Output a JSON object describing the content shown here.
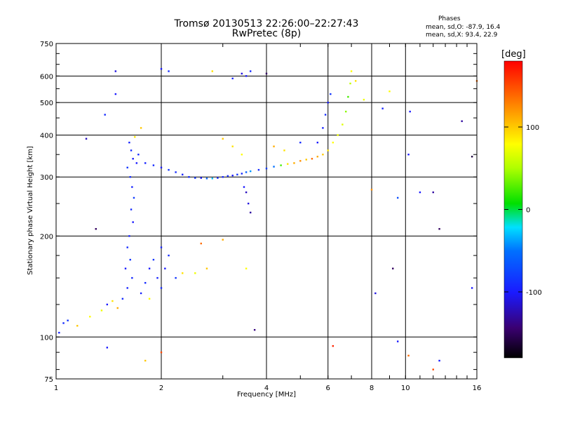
{
  "header": {
    "title": "Tromsø 20130513 22:26:00–22:27:43",
    "subtitle": "RwPretec (8p)",
    "stats_heading": "Phases",
    "stats_o": "mean, sd,O: -87.9, 16.4",
    "stats_x": "mean, sd,X:  93.4, 22.9"
  },
  "colorbar": {
    "unit_label": "[deg]",
    "range": [
      -180,
      180
    ],
    "ticks": [
      {
        "value": 100,
        "label": "100"
      },
      {
        "value": 0,
        "label": "0"
      },
      {
        "value": -100,
        "label": "-100"
      }
    ]
  },
  "chart_data": {
    "type": "scatter",
    "xlabel": "Frequency [MHz]",
    "ylabel": "Stationary phase Virtual Height [km]",
    "xscale": "log",
    "yscale": "log",
    "xlim": [
      1,
      16
    ],
    "ylim": [
      75,
      750
    ],
    "grid": true,
    "x_ticks": [
      {
        "value": 1,
        "label": "1"
      },
      {
        "value": 2,
        "label": "2"
      },
      {
        "value": 4,
        "label": "4"
      },
      {
        "value": 6,
        "label": "6"
      },
      {
        "value": 8,
        "label": "8"
      },
      {
        "value": 10,
        "label": "10"
      },
      {
        "value": 16,
        "label": "16"
      }
    ],
    "y_ticks": [
      {
        "value": 750,
        "label": "750"
      },
      {
        "value": 600,
        "label": "600"
      },
      {
        "value": 500,
        "label": "500"
      },
      {
        "value": 400,
        "label": "400"
      },
      {
        "value": 300,
        "label": "300"
      },
      {
        "value": 200,
        "label": "200"
      },
      {
        "value": 100,
        "label": "100"
      },
      {
        "value": 75,
        "label": "75"
      }
    ],
    "points": [
      {
        "x": 1.02,
        "y": 103,
        "phase": -95
      },
      {
        "x": 1.05,
        "y": 110,
        "phase": -90
      },
      {
        "x": 1.08,
        "y": 112,
        "phase": -85
      },
      {
        "x": 1.15,
        "y": 108,
        "phase": 120
      },
      {
        "x": 1.25,
        "y": 115,
        "phase": 100
      },
      {
        "x": 1.35,
        "y": 120,
        "phase": 90
      },
      {
        "x": 1.4,
        "y": 125,
        "phase": -100
      },
      {
        "x": 1.45,
        "y": 128,
        "phase": 110
      },
      {
        "x": 1.5,
        "y": 122,
        "phase": 130
      },
      {
        "x": 1.3,
        "y": 210,
        "phase": -150
      },
      {
        "x": 1.22,
        "y": 390,
        "phase": -120
      },
      {
        "x": 1.38,
        "y": 460,
        "phase": -90
      },
      {
        "x": 1.48,
        "y": 620,
        "phase": -110
      },
      {
        "x": 1.48,
        "y": 530,
        "phase": -100
      },
      {
        "x": 1.62,
        "y": 380,
        "phase": -95
      },
      {
        "x": 1.64,
        "y": 360,
        "phase": -90
      },
      {
        "x": 1.66,
        "y": 340,
        "phase": -100
      },
      {
        "x": 1.6,
        "y": 320,
        "phase": -85
      },
      {
        "x": 1.63,
        "y": 300,
        "phase": -90
      },
      {
        "x": 1.65,
        "y": 280,
        "phase": -95
      },
      {
        "x": 1.67,
        "y": 260,
        "phase": -80
      },
      {
        "x": 1.64,
        "y": 240,
        "phase": -90
      },
      {
        "x": 1.66,
        "y": 220,
        "phase": -100
      },
      {
        "x": 1.62,
        "y": 200,
        "phase": -95
      },
      {
        "x": 1.6,
        "y": 185,
        "phase": -90
      },
      {
        "x": 1.63,
        "y": 170,
        "phase": -85
      },
      {
        "x": 1.58,
        "y": 160,
        "phase": -100
      },
      {
        "x": 1.65,
        "y": 150,
        "phase": -90
      },
      {
        "x": 1.6,
        "y": 140,
        "phase": -95
      },
      {
        "x": 1.55,
        "y": 130,
        "phase": -90
      },
      {
        "x": 1.7,
        "y": 330,
        "phase": -100
      },
      {
        "x": 1.72,
        "y": 350,
        "phase": -90
      },
      {
        "x": 1.68,
        "y": 395,
        "phase": 110
      },
      {
        "x": 1.75,
        "y": 420,
        "phase": 120
      },
      {
        "x": 1.75,
        "y": 135,
        "phase": -95
      },
      {
        "x": 1.8,
        "y": 145,
        "phase": -90
      },
      {
        "x": 1.85,
        "y": 160,
        "phase": -100
      },
      {
        "x": 1.9,
        "y": 170,
        "phase": -85
      },
      {
        "x": 1.95,
        "y": 150,
        "phase": -95
      },
      {
        "x": 2.0,
        "y": 140,
        "phase": -90
      },
      {
        "x": 2.05,
        "y": 160,
        "phase": -100
      },
      {
        "x": 2.1,
        "y": 175,
        "phase": -90
      },
      {
        "x": 2.0,
        "y": 185,
        "phase": -95
      },
      {
        "x": 1.85,
        "y": 130,
        "phase": 100
      },
      {
        "x": 2.2,
        "y": 150,
        "phase": -85
      },
      {
        "x": 2.3,
        "y": 155,
        "phase": 110
      },
      {
        "x": 2.5,
        "y": 155,
        "phase": 90
      },
      {
        "x": 2.7,
        "y": 160,
        "phase": 120
      },
      {
        "x": 1.8,
        "y": 330,
        "phase": -95
      },
      {
        "x": 1.9,
        "y": 325,
        "phase": -90
      },
      {
        "x": 2.0,
        "y": 320,
        "phase": -100
      },
      {
        "x": 2.1,
        "y": 315,
        "phase": -85
      },
      {
        "x": 2.2,
        "y": 310,
        "phase": -90
      },
      {
        "x": 2.3,
        "y": 305,
        "phase": -95
      },
      {
        "x": 2.4,
        "y": 300,
        "phase": -90
      },
      {
        "x": 2.5,
        "y": 298,
        "phase": -85
      },
      {
        "x": 2.6,
        "y": 298,
        "phase": -100
      },
      {
        "x": 2.7,
        "y": 297,
        "phase": -60
      },
      {
        "x": 2.8,
        "y": 297,
        "phase": -30
      },
      {
        "x": 2.9,
        "y": 298,
        "phase": -90
      },
      {
        "x": 3.0,
        "y": 300,
        "phase": -95
      },
      {
        "x": 3.1,
        "y": 302,
        "phase": -90
      },
      {
        "x": 3.2,
        "y": 303,
        "phase": -100
      },
      {
        "x": 3.3,
        "y": 305,
        "phase": -85
      },
      {
        "x": 3.4,
        "y": 307,
        "phase": -90
      },
      {
        "x": 3.5,
        "y": 310,
        "phase": -60
      },
      {
        "x": 3.6,
        "y": 312,
        "phase": -40
      },
      {
        "x": 3.8,
        "y": 315,
        "phase": -90
      },
      {
        "x": 4.0,
        "y": 318,
        "phase": -80
      },
      {
        "x": 4.2,
        "y": 322,
        "phase": -50
      },
      {
        "x": 4.4,
        "y": 325,
        "phase": 20
      },
      {
        "x": 4.6,
        "y": 328,
        "phase": 110
      },
      {
        "x": 4.8,
        "y": 330,
        "phase": 130
      },
      {
        "x": 5.0,
        "y": 335,
        "phase": 140
      },
      {
        "x": 5.2,
        "y": 338,
        "phase": 120
      },
      {
        "x": 5.4,
        "y": 340,
        "phase": 150
      },
      {
        "x": 5.6,
        "y": 345,
        "phase": 130
      },
      {
        "x": 5.8,
        "y": 350,
        "phase": 120
      },
      {
        "x": 6.0,
        "y": 360,
        "phase": 110
      },
      {
        "x": 6.2,
        "y": 380,
        "phase": 100
      },
      {
        "x": 6.4,
        "y": 400,
        "phase": 90
      },
      {
        "x": 6.6,
        "y": 430,
        "phase": 80
      },
      {
        "x": 6.75,
        "y": 470,
        "phase": 40
      },
      {
        "x": 6.85,
        "y": 520,
        "phase": 20
      },
      {
        "x": 6.95,
        "y": 570,
        "phase": 60
      },
      {
        "x": 7.0,
        "y": 620,
        "phase": 100
      },
      {
        "x": 5.6,
        "y": 380,
        "phase": -100
      },
      {
        "x": 5.8,
        "y": 420,
        "phase": -95
      },
      {
        "x": 5.9,
        "y": 460,
        "phase": -90
      },
      {
        "x": 6.0,
        "y": 500,
        "phase": -100
      },
      {
        "x": 6.1,
        "y": 530,
        "phase": -85
      },
      {
        "x": 3.0,
        "y": 390,
        "phase": 120
      },
      {
        "x": 3.2,
        "y": 370,
        "phase": 110
      },
      {
        "x": 3.4,
        "y": 350,
        "phase": 100
      },
      {
        "x": 4.2,
        "y": 370,
        "phase": 130
      },
      {
        "x": 4.5,
        "y": 360,
        "phase": 110
      },
      {
        "x": 5.0,
        "y": 380,
        "phase": -90
      },
      {
        "x": 3.5,
        "y": 270,
        "phase": -120
      },
      {
        "x": 3.55,
        "y": 250,
        "phase": -110
      },
      {
        "x": 3.6,
        "y": 235,
        "phase": -130
      },
      {
        "x": 3.45,
        "y": 280,
        "phase": -100
      },
      {
        "x": 3.5,
        "y": 600,
        "phase": -100
      },
      {
        "x": 3.6,
        "y": 620,
        "phase": -90
      },
      {
        "x": 3.4,
        "y": 610,
        "phase": -110
      },
      {
        "x": 3.2,
        "y": 590,
        "phase": -95
      },
      {
        "x": 2.0,
        "y": 630,
        "phase": -100
      },
      {
        "x": 2.1,
        "y": 620,
        "phase": -90
      },
      {
        "x": 2.8,
        "y": 620,
        "phase": 110
      },
      {
        "x": 4.0,
        "y": 610,
        "phase": -150
      },
      {
        "x": 3.0,
        "y": 195,
        "phase": 130
      },
      {
        "x": 2.6,
        "y": 190,
        "phase": 150
      },
      {
        "x": 3.5,
        "y": 160,
        "phase": 100
      },
      {
        "x": 3.7,
        "y": 105,
        "phase": -140
      },
      {
        "x": 1.4,
        "y": 93,
        "phase": -100
      },
      {
        "x": 1.8,
        "y": 85,
        "phase": 120
      },
      {
        "x": 2.0,
        "y": 90,
        "phase": 160
      },
      {
        "x": 6.2,
        "y": 94,
        "phase": 170
      },
      {
        "x": 9.5,
        "y": 97,
        "phase": -100
      },
      {
        "x": 10.2,
        "y": 88,
        "phase": 150
      },
      {
        "x": 12.0,
        "y": 80,
        "phase": 160
      },
      {
        "x": 12.5,
        "y": 85,
        "phase": -100
      },
      {
        "x": 8.2,
        "y": 135,
        "phase": -110
      },
      {
        "x": 9.2,
        "y": 160,
        "phase": -150
      },
      {
        "x": 11.0,
        "y": 270,
        "phase": -100
      },
      {
        "x": 12.0,
        "y": 270,
        "phase": -130
      },
      {
        "x": 12.5,
        "y": 210,
        "phase": -150
      },
      {
        "x": 9.5,
        "y": 260,
        "phase": -70
      },
      {
        "x": 8.0,
        "y": 275,
        "phase": 140
      },
      {
        "x": 10.2,
        "y": 350,
        "phase": -100
      },
      {
        "x": 14.5,
        "y": 440,
        "phase": -130
      },
      {
        "x": 15.5,
        "y": 345,
        "phase": -160
      },
      {
        "x": 16.0,
        "y": 580,
        "phase": 150
      },
      {
        "x": 15.5,
        "y": 140,
        "phase": -100
      },
      {
        "x": 8.6,
        "y": 480,
        "phase": -95
      },
      {
        "x": 9.0,
        "y": 540,
        "phase": 100
      },
      {
        "x": 10.3,
        "y": 470,
        "phase": -100
      },
      {
        "x": 7.2,
        "y": 580,
        "phase": 110
      },
      {
        "x": 7.6,
        "y": 510,
        "phase": 90
      }
    ]
  }
}
